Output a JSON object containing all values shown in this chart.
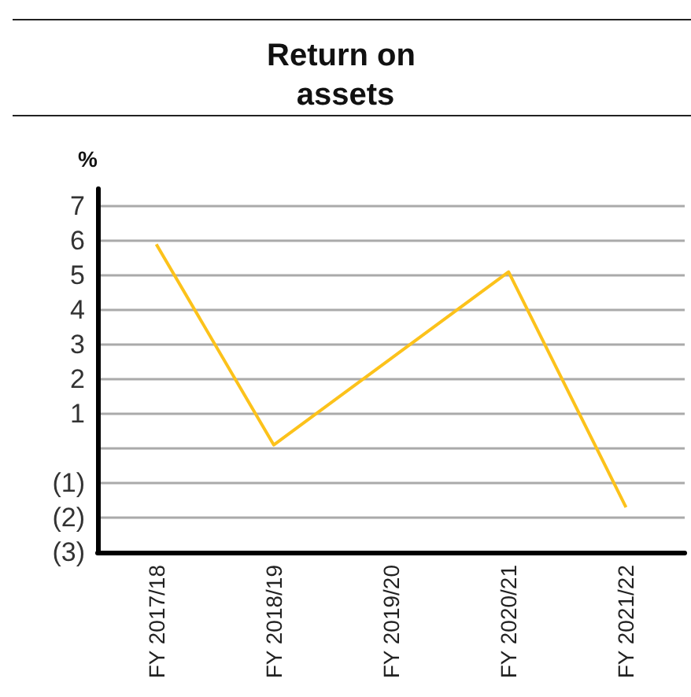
{
  "chart_data": {
    "type": "line",
    "title": "Return on assets",
    "ylabel": "%",
    "categories": [
      "FY 2017/18",
      "FY 2018/19",
      "FY 2019/20",
      "FY 2020/21",
      "FY 2021/22"
    ],
    "series": [
      {
        "color": "#fcc21b",
        "values": [
          5.9,
          0.1,
          2.6,
          5.1,
          -1.7
        ]
      }
    ],
    "ylim": [
      -3,
      7.5
    ],
    "yticks": [
      {
        "value": -3,
        "label": "(3)"
      },
      {
        "value": -2,
        "label": "(2)"
      },
      {
        "value": -1,
        "label": "(1)"
      },
      {
        "value": 0,
        "label": null
      },
      1,
      2,
      3,
      4,
      5,
      6,
      7
    ],
    "grid": "y",
    "marker": "none",
    "line_style": "solid"
  }
}
